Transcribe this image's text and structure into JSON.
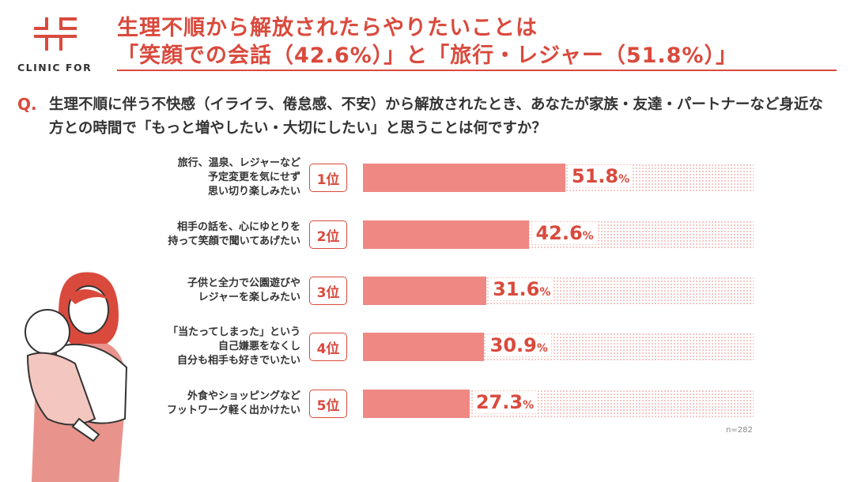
{
  "brand": {
    "name": "CLINIC FOR",
    "color": "#d94a3d"
  },
  "title": {
    "line1": "生理不順から解放されたらやりたいことは",
    "line2": "「笑顔での会話（42.6%）」と「旅行・レジャー（51.8%）」"
  },
  "question": {
    "mark": "Q.",
    "text": "生理不順に伴う不快感（イライラ、倦怠感、不安）から解放されたとき、あなたが家族・友達・パートナーなど身近な方との時間で「もっと増やしたい・大切にしたい」と思うことは何ですか？"
  },
  "chart_data": {
    "type": "bar",
    "orientation": "horizontal",
    "xlim": [
      0,
      100
    ],
    "unit": "%",
    "bar_color": "#ef8883",
    "rows": [
      {
        "rank": "1位",
        "label": [
          "旅行、温泉、レジャーなど",
          "予定変更を気にせず",
          "思い切り楽しみたい"
        ],
        "value": 51.8,
        "value_text": "51.8"
      },
      {
        "rank": "2位",
        "label": [
          "相手の話を、心にゆとりを",
          "持って笑顔で聞いてあげたい"
        ],
        "value": 42.6,
        "value_text": "42.6"
      },
      {
        "rank": "3位",
        "label": [
          "子供と全力で公園遊びや",
          "レジャーを楽しみたい"
        ],
        "value": 31.6,
        "value_text": "31.6"
      },
      {
        "rank": "4位",
        "label": [
          "「当たってしまった」という",
          "自己嫌悪をなくし",
          "自分も相手も好きでいたい"
        ],
        "value": 30.9,
        "value_text": "30.9"
      },
      {
        "rank": "5位",
        "label": [
          "外食やショッピングなど",
          "フットワーク軽く出かけたい"
        ],
        "value": 27.3,
        "value_text": "27.3"
      }
    ],
    "percent_sign": "%",
    "note": "n=282"
  }
}
